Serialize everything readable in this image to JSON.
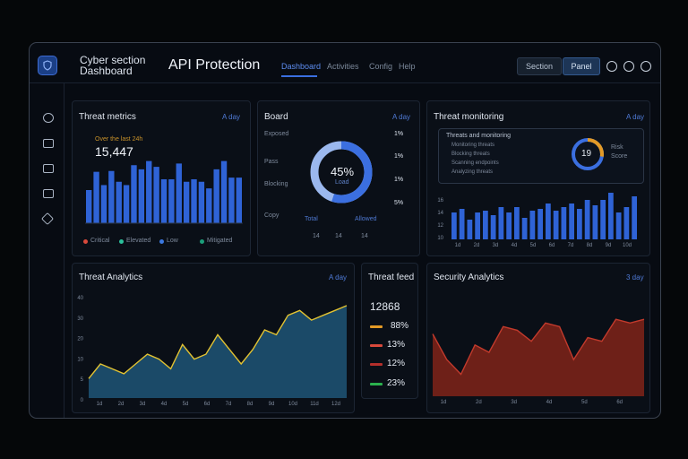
{
  "header": {
    "brand_line1": "Cyber section",
    "brand_line2": "Dashboard",
    "title": "API Protection",
    "tabs": [
      {
        "label": "Dashboard",
        "active": true
      },
      {
        "label": "Activities",
        "active": false
      },
      {
        "label": "Config",
        "active": false
      },
      {
        "label": "Help",
        "active": false
      }
    ],
    "buttons": [
      "Section",
      "Panel"
    ],
    "icons": [
      "search-icon",
      "edit-icon",
      "settings-icon"
    ]
  },
  "sidebar": {
    "icons": [
      "chat-icon",
      "inbox-icon",
      "calendar-icon",
      "storage-icon",
      "tag-icon"
    ]
  },
  "threat_metrics": {
    "title": "Threat metrics",
    "meta": "A day",
    "sublabel": "Over the last 24h",
    "value": "15,447",
    "legend": [
      "Critical",
      "Elevated",
      "Low",
      "Mitigated"
    ],
    "legend_colors": [
      "#d9493b",
      "#2bbf9a",
      "#3b78e0",
      "#1c9e7a"
    ],
    "chart_data": {
      "type": "bar",
      "values": [
        40,
        62,
        46,
        63,
        50,
        46,
        70,
        65,
        75,
        68,
        53,
        53,
        72,
        50,
        53,
        50,
        42,
        65,
        75,
        55,
        55
      ]
    }
  },
  "board": {
    "title": "Board",
    "meta": "A day",
    "left_labels": [
      "Exposed",
      "Pass",
      "Blocking",
      "Copy"
    ],
    "percent": "45%",
    "sub": "Load",
    "right_values": [
      "1%",
      "1%",
      "1%",
      "5%"
    ],
    "bottom_labels": [
      "Total",
      "Allowed"
    ],
    "bottom_ticks": [
      "14",
      "14",
      "14"
    ],
    "percent_value": 45
  },
  "threat_monitoring": {
    "title": "Threat monitoring",
    "meta": "A day",
    "list_title": "Threats and monitoring",
    "list_items": [
      "Monitoring threats",
      "Blocking threats",
      "Scanning endpoints",
      "Analyzing threats"
    ],
    "gauge_value": "19",
    "gauge_labels": [
      "Risk",
      "Score"
    ],
    "gauge_fraction": 0.55,
    "y_ticks": [
      "16",
      "14",
      "12",
      "10"
    ],
    "x_ticks": [
      "1d",
      "2d",
      "3d",
      "4d",
      "5d",
      "6d",
      "7d",
      "8d",
      "9d",
      "10d"
    ],
    "chart_data": {
      "type": "bar",
      "values": [
        30,
        34,
        22,
        30,
        32,
        27,
        36,
        30,
        36,
        24,
        32,
        34,
        40,
        32,
        36,
        40,
        34,
        44,
        38,
        44,
        52,
        30,
        36,
        48
      ]
    }
  },
  "threat_analytics": {
    "title": "Threat Analytics",
    "meta": "A day",
    "y_ticks": [
      "40",
      "30",
      "20",
      "10",
      "5",
      "0"
    ],
    "x_ticks": [
      "1d",
      "2d",
      "3d",
      "4d",
      "5d",
      "6d",
      "7d",
      "8d",
      "9d",
      "10d",
      "11d",
      "12d"
    ],
    "chart_data": {
      "type": "area",
      "values": [
        8,
        14,
        12,
        10,
        14,
        18,
        16,
        12,
        22,
        16,
        18,
        26,
        20,
        14,
        20,
        28,
        26,
        34,
        36,
        32,
        34,
        36,
        38
      ]
    }
  },
  "threat_feed": {
    "title": "Threat feed",
    "total": "12868",
    "rows": [
      {
        "value": "88%",
        "color": "#e39a26"
      },
      {
        "value": "13%",
        "color": "#d9493b"
      },
      {
        "value": "12%",
        "color": "#b42f2b"
      },
      {
        "value": "23%",
        "color": "#2bb14d"
      }
    ]
  },
  "security_analytics": {
    "title": "Security Analytics",
    "meta": "3 day",
    "x_ticks": [
      "1d",
      "2d",
      "3d",
      "4d",
      "5d",
      "6d"
    ],
    "chart_data": {
      "type": "area",
      "values": [
        34,
        20,
        12,
        28,
        24,
        38,
        36,
        30,
        40,
        38,
        20,
        32,
        30,
        42,
        40,
        42
      ]
    }
  }
}
